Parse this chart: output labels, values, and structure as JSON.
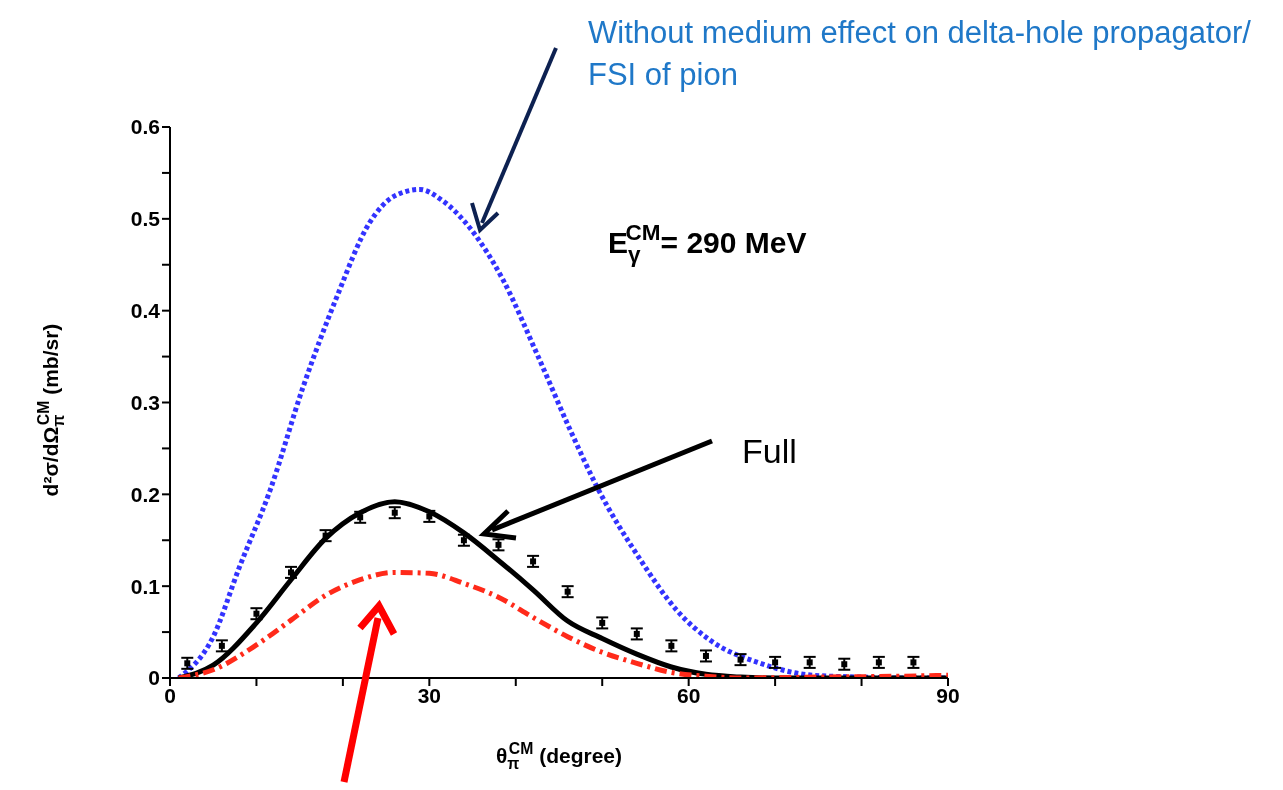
{
  "chart_data": {
    "type": "line",
    "xlabel": "θ$_{π}$$^{CM}$ (degree)",
    "ylabel": "d²σ/dΩ$_{π}$$^{CM}$ (mb/sr)",
    "annotations": [
      "Without medium effect on delta-hole propagator/ FSI of pion",
      "Full",
      "E$_{γ}$$^{CM}$= 290 MeV"
    ],
    "xlim": [
      0,
      90
    ],
    "ylim": [
      0,
      0.6
    ],
    "xticks": [
      0,
      {
        "value": 10,
        "label": null
      },
      {
        "value": 20,
        "label": null
      },
      30,
      {
        "value": 40,
        "label": null
      },
      {
        "value": 50,
        "label": null
      },
      60,
      {
        "value": 70,
        "label": null
      },
      {
        "value": 80,
        "label": null
      },
      90
    ],
    "yticks": [
      0,
      {
        "value": 0.05,
        "label": null
      },
      0.1,
      {
        "value": 0.15,
        "label": null
      },
      0.2,
      {
        "value": 0.25,
        "label": null
      },
      0.3,
      {
        "value": 0.35,
        "label": null
      },
      0.4,
      {
        "value": 0.45,
        "label": null
      },
      0.5,
      {
        "value": 0.55,
        "label": null
      },
      0.6
    ],
    "grid": false,
    "series": [
      {
        "color": "#3333ff",
        "line_style": "dotted",
        "x": [
          1,
          5,
          8,
          11.6,
          15.4,
          19.3,
          23.1,
          26,
          28.9,
          31.5,
          34.7,
          38.5,
          42.4,
          46.3,
          49.4,
          54.4,
          58.6,
          62.5,
          68.3,
          74.4,
          80,
          85,
          90
        ],
        "values": [
          0,
          0.045,
          0.12,
          0.205,
          0.317,
          0.415,
          0.496,
          0.525,
          0.532,
          0.52,
          0.49,
          0.434,
          0.354,
          0.27,
          0.208,
          0.129,
          0.074,
          0.041,
          0.016,
          0.003,
          0.001,
          0,
          0
        ]
      },
      {
        "color": "#000000",
        "line_style": "solid",
        "x": [
          1,
          5,
          10,
          14,
          18,
          22,
          26,
          30,
          34,
          38,
          42,
          46,
          50,
          54,
          58,
          62,
          66,
          70,
          80,
          90
        ],
        "values": [
          0,
          0.014,
          0.06,
          0.107,
          0.152,
          0.18,
          0.192,
          0.181,
          0.158,
          0.128,
          0.096,
          0.062,
          0.043,
          0.026,
          0.012,
          0.004,
          0.001,
          0,
          0,
          0
        ]
      },
      {
        "color": "#ff2a1a",
        "line_style": "dashed",
        "x": [
          1,
          5,
          10,
          14,
          18,
          22,
          26,
          30,
          34,
          38,
          42,
          46,
          50,
          54,
          58,
          62,
          66,
          75,
          85,
          90
        ],
        "values": [
          0,
          0.009,
          0.036,
          0.063,
          0.09,
          0.107,
          0.115,
          0.114,
          0.103,
          0.088,
          0.066,
          0.045,
          0.028,
          0.016,
          0.006,
          0.002,
          0,
          0.001,
          0.002,
          0.003
        ]
      },
      {
        "type": "scatter",
        "color": "#000000",
        "marker": "square",
        "x": [
          2,
          6,
          10,
          14,
          18,
          22,
          26,
          30,
          34,
          38,
          42,
          46,
          50,
          54,
          58,
          62,
          66,
          70,
          74,
          78,
          82,
          86
        ],
        "values": [
          0.016,
          0.035,
          0.07,
          0.115,
          0.155,
          0.175,
          0.18,
          0.176,
          0.15,
          0.145,
          0.127,
          0.094,
          0.06,
          0.048,
          0.035,
          0.024,
          0.02,
          0.017,
          0.017,
          0.015,
          0.017,
          0.017
        ],
        "errors": [
          0.006,
          0.006,
          0.006,
          0.006,
          0.006,
          0.006,
          0.006,
          0.006,
          0.006,
          0.006,
          0.006,
          0.006,
          0.006,
          0.006,
          0.006,
          0.006,
          0.006,
          0.006,
          0.006,
          0.006,
          0.006,
          0.006
        ]
      }
    ]
  }
}
